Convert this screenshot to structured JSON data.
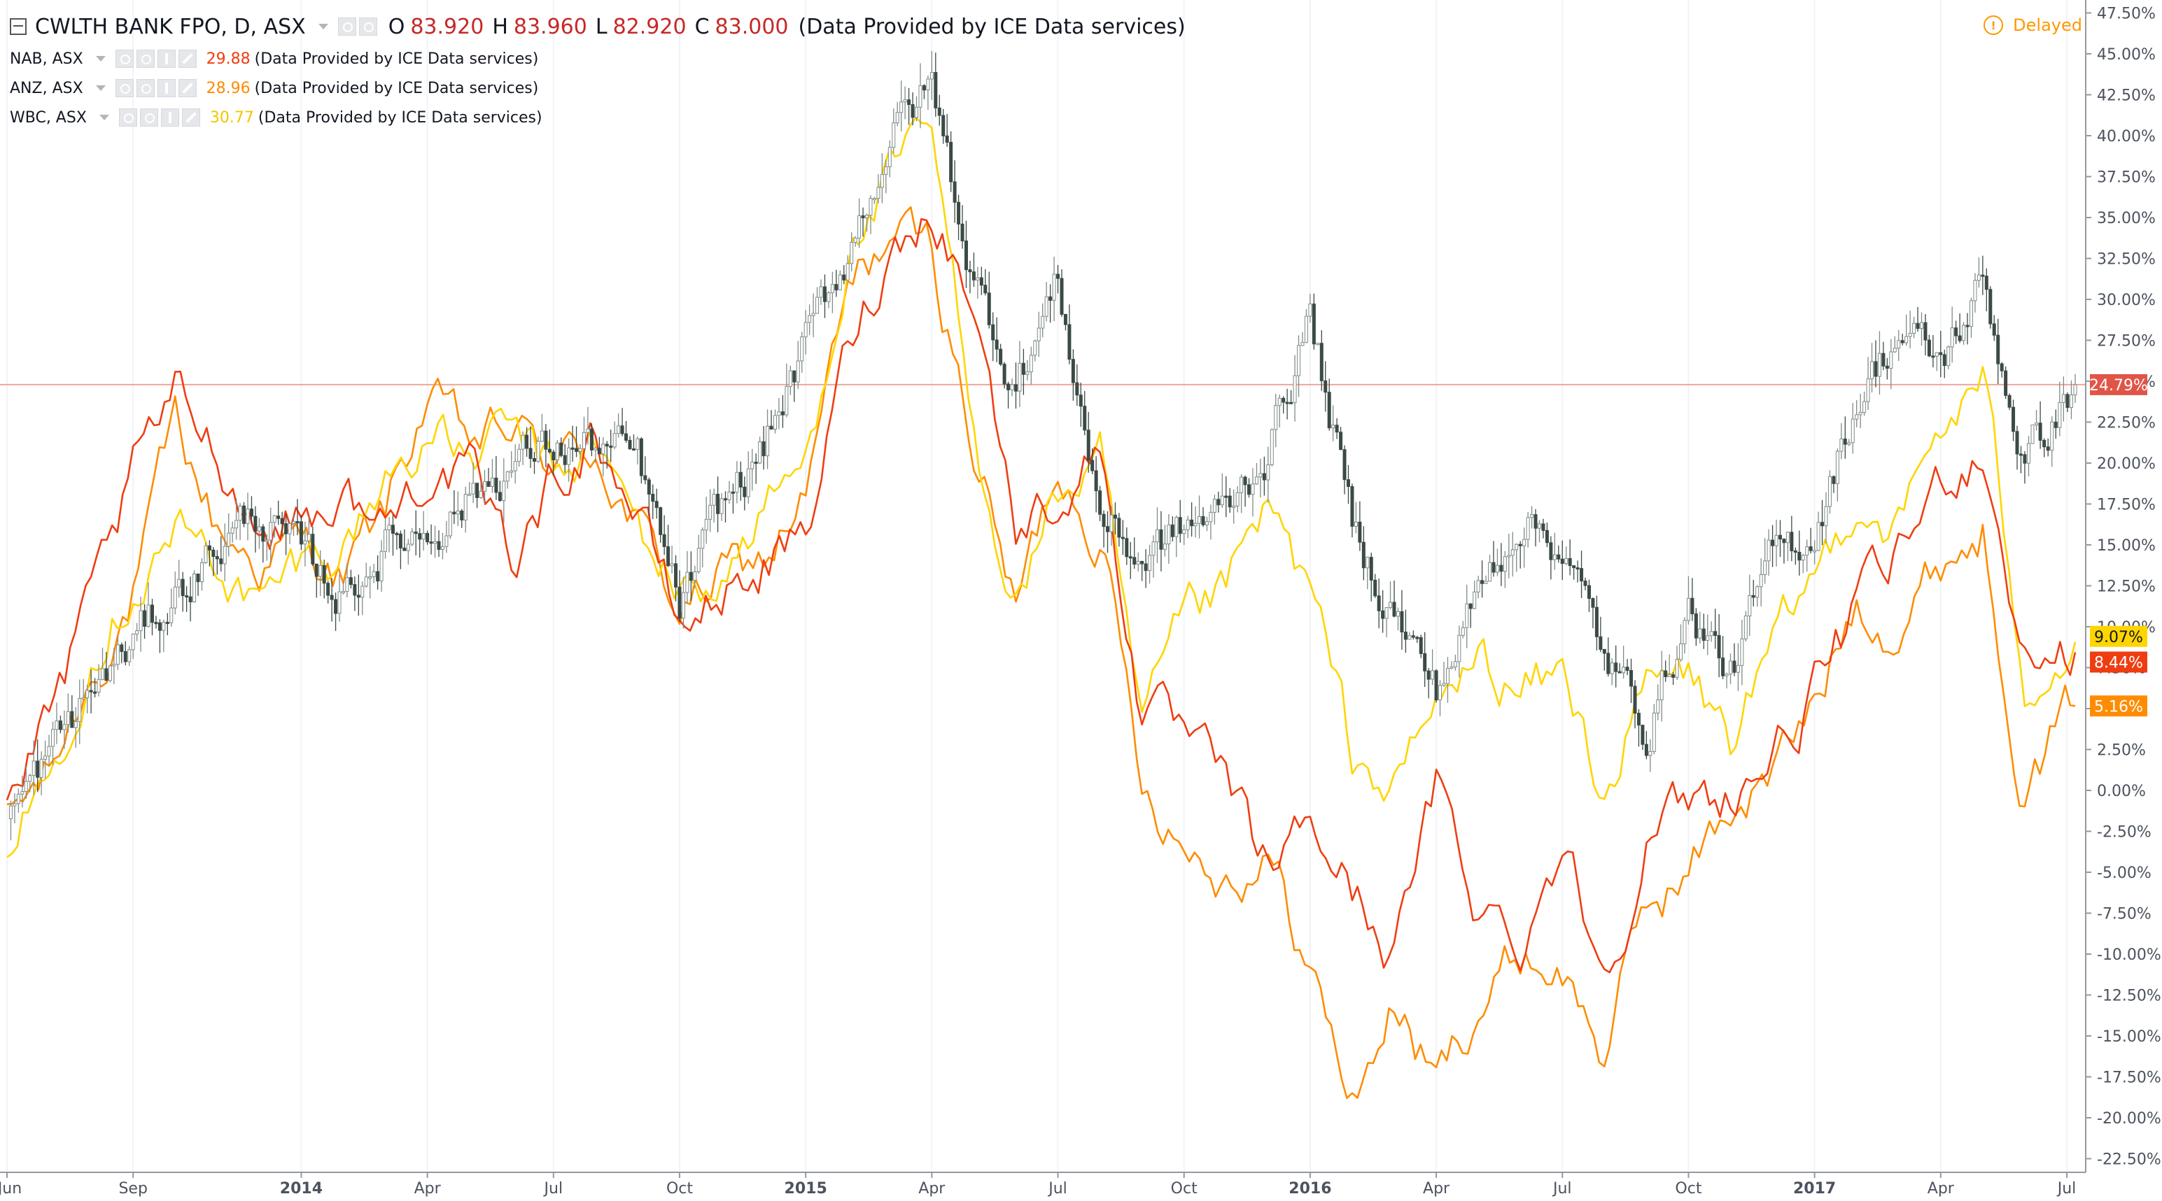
{
  "legend": {
    "main": {
      "symbol": "CWLTH BANK FPO, D, ASX",
      "o_label": "O",
      "o_value": "83.920",
      "h_label": "H",
      "h_value": "83.960",
      "l_label": "L",
      "l_value": "82.920",
      "c_label": "C",
      "c_value": "83.000",
      "provider": "(Data Provided by ICE Data services)"
    },
    "series": [
      {
        "symbol": "NAB, ASX",
        "value": "29.88",
        "provider": "(Data Provided by ICE Data services)"
      },
      {
        "symbol": "ANZ, ASX",
        "value": "28.96",
        "provider": "(Data Provided by ICE Data services)"
      },
      {
        "symbol": "WBC, ASX",
        "value": "30.77",
        "provider": "(Data Provided by ICE Data services)"
      }
    ]
  },
  "status": {
    "delayed_label": "Delayed",
    "delayed_icon": "!"
  },
  "colors": {
    "cba": "#3b4a44",
    "cba_up": "#7f8b87",
    "nab": "#ef3d12",
    "anz": "#ff8c00",
    "wbc": "#ffd500",
    "cba_tag": "#e05547",
    "price_line": "#f0a49b",
    "axis_text": "#4c525e",
    "axis_line": "#9598a1",
    "grid_v": "#f0f3fa",
    "delayed": "#ff9800"
  },
  "chart_data": {
    "type": "line",
    "title": "CWLTH BANK FPO, D, ASX",
    "y_unit": "%",
    "ylim": [
      -22.5,
      47.5
    ],
    "y_ticks": [
      "47.50%",
      "45.00%",
      "42.50%",
      "40.00%",
      "37.50%",
      "35.00%",
      "32.50%",
      "30.00%",
      "27.50%",
      "25.00%",
      "22.50%",
      "20.00%",
      "17.50%",
      "15.00%",
      "12.50%",
      "10.00%",
      "7.50%",
      "5.00%",
      "2.50%",
      "0.00%",
      "-2.50%",
      "-5.00%",
      "-7.50%",
      "-10.00%",
      "-12.50%",
      "-15.00%",
      "-17.50%",
      "-20.00%",
      "-22.50%"
    ],
    "x_range": [
      "2013-06",
      "2017-07"
    ],
    "x_ticks": [
      {
        "label": "Jun",
        "x": 0.0
      },
      {
        "label": "Sep",
        "x": 3.0
      },
      {
        "label": "2014",
        "x": 7.0
      },
      {
        "label": "Apr",
        "x": 10.0
      },
      {
        "label": "Jul",
        "x": 13.0
      },
      {
        "label": "Oct",
        "x": 16.0
      },
      {
        "label": "2015",
        "x": 19.0
      },
      {
        "label": "Apr",
        "x": 22.0
      },
      {
        "label": "Jul",
        "x": 25.0
      },
      {
        "label": "Oct",
        "x": 28.0
      },
      {
        "label": "2016",
        "x": 31.0
      },
      {
        "label": "Apr",
        "x": 34.0
      },
      {
        "label": "Jul",
        "x": 37.0
      },
      {
        "label": "Oct",
        "x": 40.0
      },
      {
        "label": "2017",
        "x": 43.0
      },
      {
        "label": "Apr",
        "x": 46.0
      },
      {
        "label": "Jul",
        "x": 49.0
      }
    ],
    "x_end": 49.2,
    "grid": "vertical",
    "price_line": {
      "value": 24.79,
      "label": "24.79%"
    },
    "last_value_tags": [
      {
        "series": "WBC, ASX",
        "value": 9.07,
        "label": "9.07%"
      },
      {
        "series": "NAB, ASX",
        "value": 8.44,
        "label": "8.44%"
      },
      {
        "series": "ANZ, ASX",
        "value": 5.16,
        "label": "5.16%"
      },
      {
        "series": "CWLTH BANK FPO",
        "value": 24.79,
        "label": "24.79%"
      }
    ],
    "series": [
      {
        "name": "CWLTH BANK FPO, D, ASX",
        "style": "candles",
        "x": [
          0,
          1,
          2,
          3,
          4,
          5,
          6,
          7,
          8,
          9,
          10,
          11,
          12,
          13,
          14,
          15,
          16,
          17,
          18,
          19,
          20,
          21,
          22,
          23,
          24,
          25,
          26,
          27,
          28,
          29,
          30,
          31,
          32,
          33,
          34,
          35,
          36,
          37,
          38,
          39,
          40,
          41,
          42,
          43,
          44,
          45,
          46,
          47,
          48,
          49.2
        ],
        "values": [
          -2,
          2,
          6,
          9,
          12,
          15,
          17,
          14,
          12,
          15,
          16,
          18,
          20,
          21,
          21,
          20,
          11,
          17,
          21,
          27,
          33,
          40,
          43,
          31,
          25,
          31,
          17,
          14,
          16,
          17,
          21,
          29,
          16,
          11,
          6,
          12,
          17,
          15,
          8,
          4,
          11,
          7,
          14,
          16,
          24,
          28,
          26,
          31,
          20,
          24.79
        ]
      },
      {
        "name": "NAB, ASX",
        "x": [
          0,
          1,
          2,
          3,
          4,
          5,
          6,
          7,
          8,
          9,
          10,
          11,
          12,
          13,
          14,
          15,
          16,
          17,
          18,
          19,
          20,
          21,
          22,
          23,
          24,
          25,
          26,
          27,
          28,
          29,
          30,
          31,
          32,
          33,
          34,
          35,
          36,
          37,
          38,
          39,
          40,
          41,
          42,
          43,
          44,
          45,
          46,
          47,
          48,
          49.2
        ],
        "values": [
          -1,
          4,
          11,
          19,
          24,
          21,
          16,
          17,
          18,
          16,
          20,
          19,
          14,
          19,
          22,
          17,
          10,
          12,
          14,
          15,
          27,
          33,
          36,
          30,
          16,
          18,
          21,
          5,
          3,
          0,
          -5,
          -2,
          -6,
          -10,
          0,
          -7,
          -9,
          -3,
          -11,
          -3,
          -1,
          0,
          2,
          6,
          11,
          14,
          19,
          21,
          8,
          8.44
        ]
      },
      {
        "name": "ANZ, ASX",
        "x": [
          0,
          1,
          2,
          3,
          4,
          5,
          6,
          7,
          8,
          9,
          10,
          11,
          12,
          13,
          14,
          15,
          16,
          17,
          18,
          19,
          20,
          21,
          22,
          23,
          24,
          25,
          26,
          27,
          28,
          29,
          30,
          31,
          32,
          33,
          34,
          35,
          36,
          37,
          38,
          39,
          40,
          41,
          42,
          43,
          44,
          45,
          46,
          47,
          48,
          49.2
        ],
        "values": [
          -2,
          1,
          7,
          12,
          22,
          16,
          14,
          15,
          13,
          17,
          24,
          21,
          22,
          20,
          21,
          16,
          11,
          13,
          14,
          18,
          30,
          34,
          33,
          21,
          11,
          20,
          16,
          1,
          -3,
          -5,
          -4,
          -11,
          -19,
          -13,
          -18,
          -13,
          -10,
          -11,
          -16,
          -7,
          -5,
          -1,
          1,
          5,
          12,
          10,
          14,
          16,
          0,
          5.16
        ]
      },
      {
        "name": "WBC, ASX",
        "x": [
          0,
          1,
          2,
          3,
          4,
          5,
          6,
          7,
          8,
          9,
          10,
          11,
          12,
          13,
          14,
          15,
          16,
          17,
          18,
          19,
          20,
          21,
          22,
          23,
          24,
          25,
          26,
          27,
          28,
          29,
          30,
          31,
          32,
          33,
          34,
          35,
          36,
          37,
          38,
          39,
          40,
          41,
          42,
          43,
          44,
          45,
          46,
          47,
          48,
          49.2
        ],
        "values": [
          -3,
          1,
          9,
          13,
          16,
          14,
          11,
          14,
          15,
          19,
          22,
          20,
          22,
          19,
          21,
          16,
          12,
          13,
          17,
          20,
          33,
          37,
          40,
          21,
          12,
          18,
          20,
          3,
          10,
          12,
          17,
          12,
          2,
          0,
          5,
          8,
          6,
          7,
          0,
          6,
          7,
          3,
          8,
          13,
          18,
          16,
          22,
          25,
          7,
          9.07
        ]
      }
    ]
  }
}
